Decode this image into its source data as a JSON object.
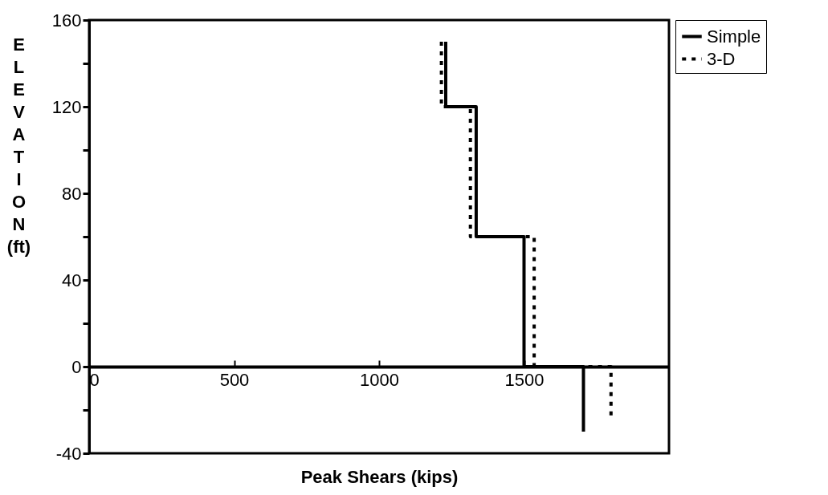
{
  "chart_data": {
    "type": "line",
    "xlabel": "Peak Shears (kips)",
    "ylabel": "ELEVATION (ft)",
    "xlim": [
      0,
      2000
    ],
    "xticks": [
      0,
      500,
      1000,
      1500
    ],
    "ylim": [
      -40,
      160
    ],
    "yticks": [
      {
        "value": -40,
        "label": "-40"
      },
      {
        "value": -20,
        "label": null
      },
      {
        "value": 0,
        "label": "0"
      },
      {
        "value": 20,
        "label": null
      },
      {
        "value": 40,
        "label": "40"
      },
      {
        "value": 60,
        "label": null
      },
      {
        "value": 80,
        "label": "80"
      },
      {
        "value": 100,
        "label": null
      },
      {
        "value": 120,
        "label": "120"
      },
      {
        "value": 140,
        "label": null
      },
      {
        "value": 160,
        "label": "160"
      }
    ],
    "grid": false,
    "legend": "top right",
    "series": [
      {
        "name": "Simple",
        "color": "#000000",
        "line_style": "solid",
        "x": [
          1230,
          1230,
          1335,
          1335,
          1500,
          1500,
          1705,
          1705
        ],
        "values": [
          150,
          120,
          120,
          60,
          60,
          0,
          0,
          -30
        ]
      },
      {
        "name": "3-D",
        "color": "#000000",
        "line_style": "dotted",
        "x": [
          1215,
          1215,
          1315,
          1315,
          1535,
          1535,
          1800,
          1800
        ],
        "values": [
          150,
          120,
          120,
          60,
          60,
          0,
          0,
          -24
        ]
      }
    ]
  }
}
